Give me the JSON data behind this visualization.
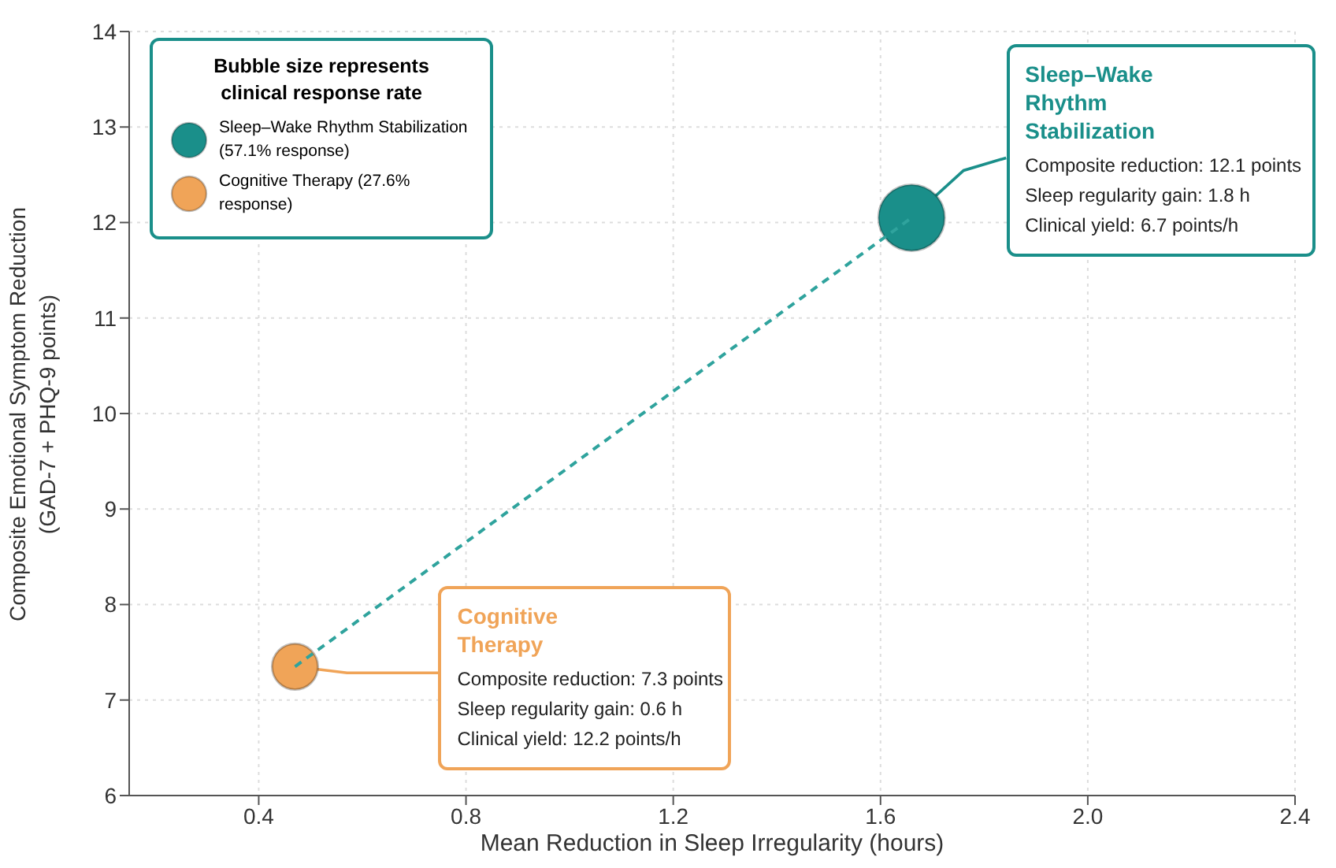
{
  "chart_data": {
    "type": "bubble",
    "xlabel": "Mean Reduction in Sleep Irregularity (hours)",
    "ylabel": "Composite Emotional Symptom Reduction (GAD-7 + PHQ-9 points)",
    "legend_title": "Bubble size represents clinical response rate",
    "legend": "top left",
    "grid": true,
    "x": [
      0.47,
      1.66
    ],
    "xlim": [
      0.15,
      2.4
    ],
    "xticks": [
      0.4,
      0.8,
      1.2,
      1.6,
      {
        "value": 2,
        "label": "2.0"
      },
      2.4
    ],
    "ylim": [
      6,
      14
    ],
    "yticks": [
      6,
      7,
      8,
      9,
      10,
      11,
      12,
      13,
      14
    ],
    "series": [
      {
        "name": "Sleep–Wake Rhythm Stabilization (57.1% response)",
        "color": "#1a8f8a",
        "values": [
          null,
          12.05
        ],
        "sizes": [
          null,
          1
        ]
      },
      {
        "name": "Cognitive Therapy (27.6% response)",
        "color": "#f0a458",
        "values": [
          7.35,
          null
        ],
        "sizes": [
          0.48,
          null
        ]
      },
      {
        "type": "line",
        "color": "#2fa39d",
        "values": [
          7.35,
          12.05
        ],
        "line_style": "dashed",
        "marker": "none"
      }
    ],
    "annotations": [
      {
        "text": "Sleep–Wake Rhythm Stabilization",
        "x": 1.66,
        "y": 12.05
      },
      "Composite reduction: 12.1 points",
      "Sleep regularity gain: 1.8 h",
      "Clinical yield: 6.7 points/h",
      {
        "text": "Cognitive Therapy",
        "x": 0.47,
        "y": 7.35
      },
      "Composite reduction: 7.3 points",
      "Sleep regularity gain: 0.6 h",
      "Clinical yield: 12.2 points/h"
    ]
  }
}
